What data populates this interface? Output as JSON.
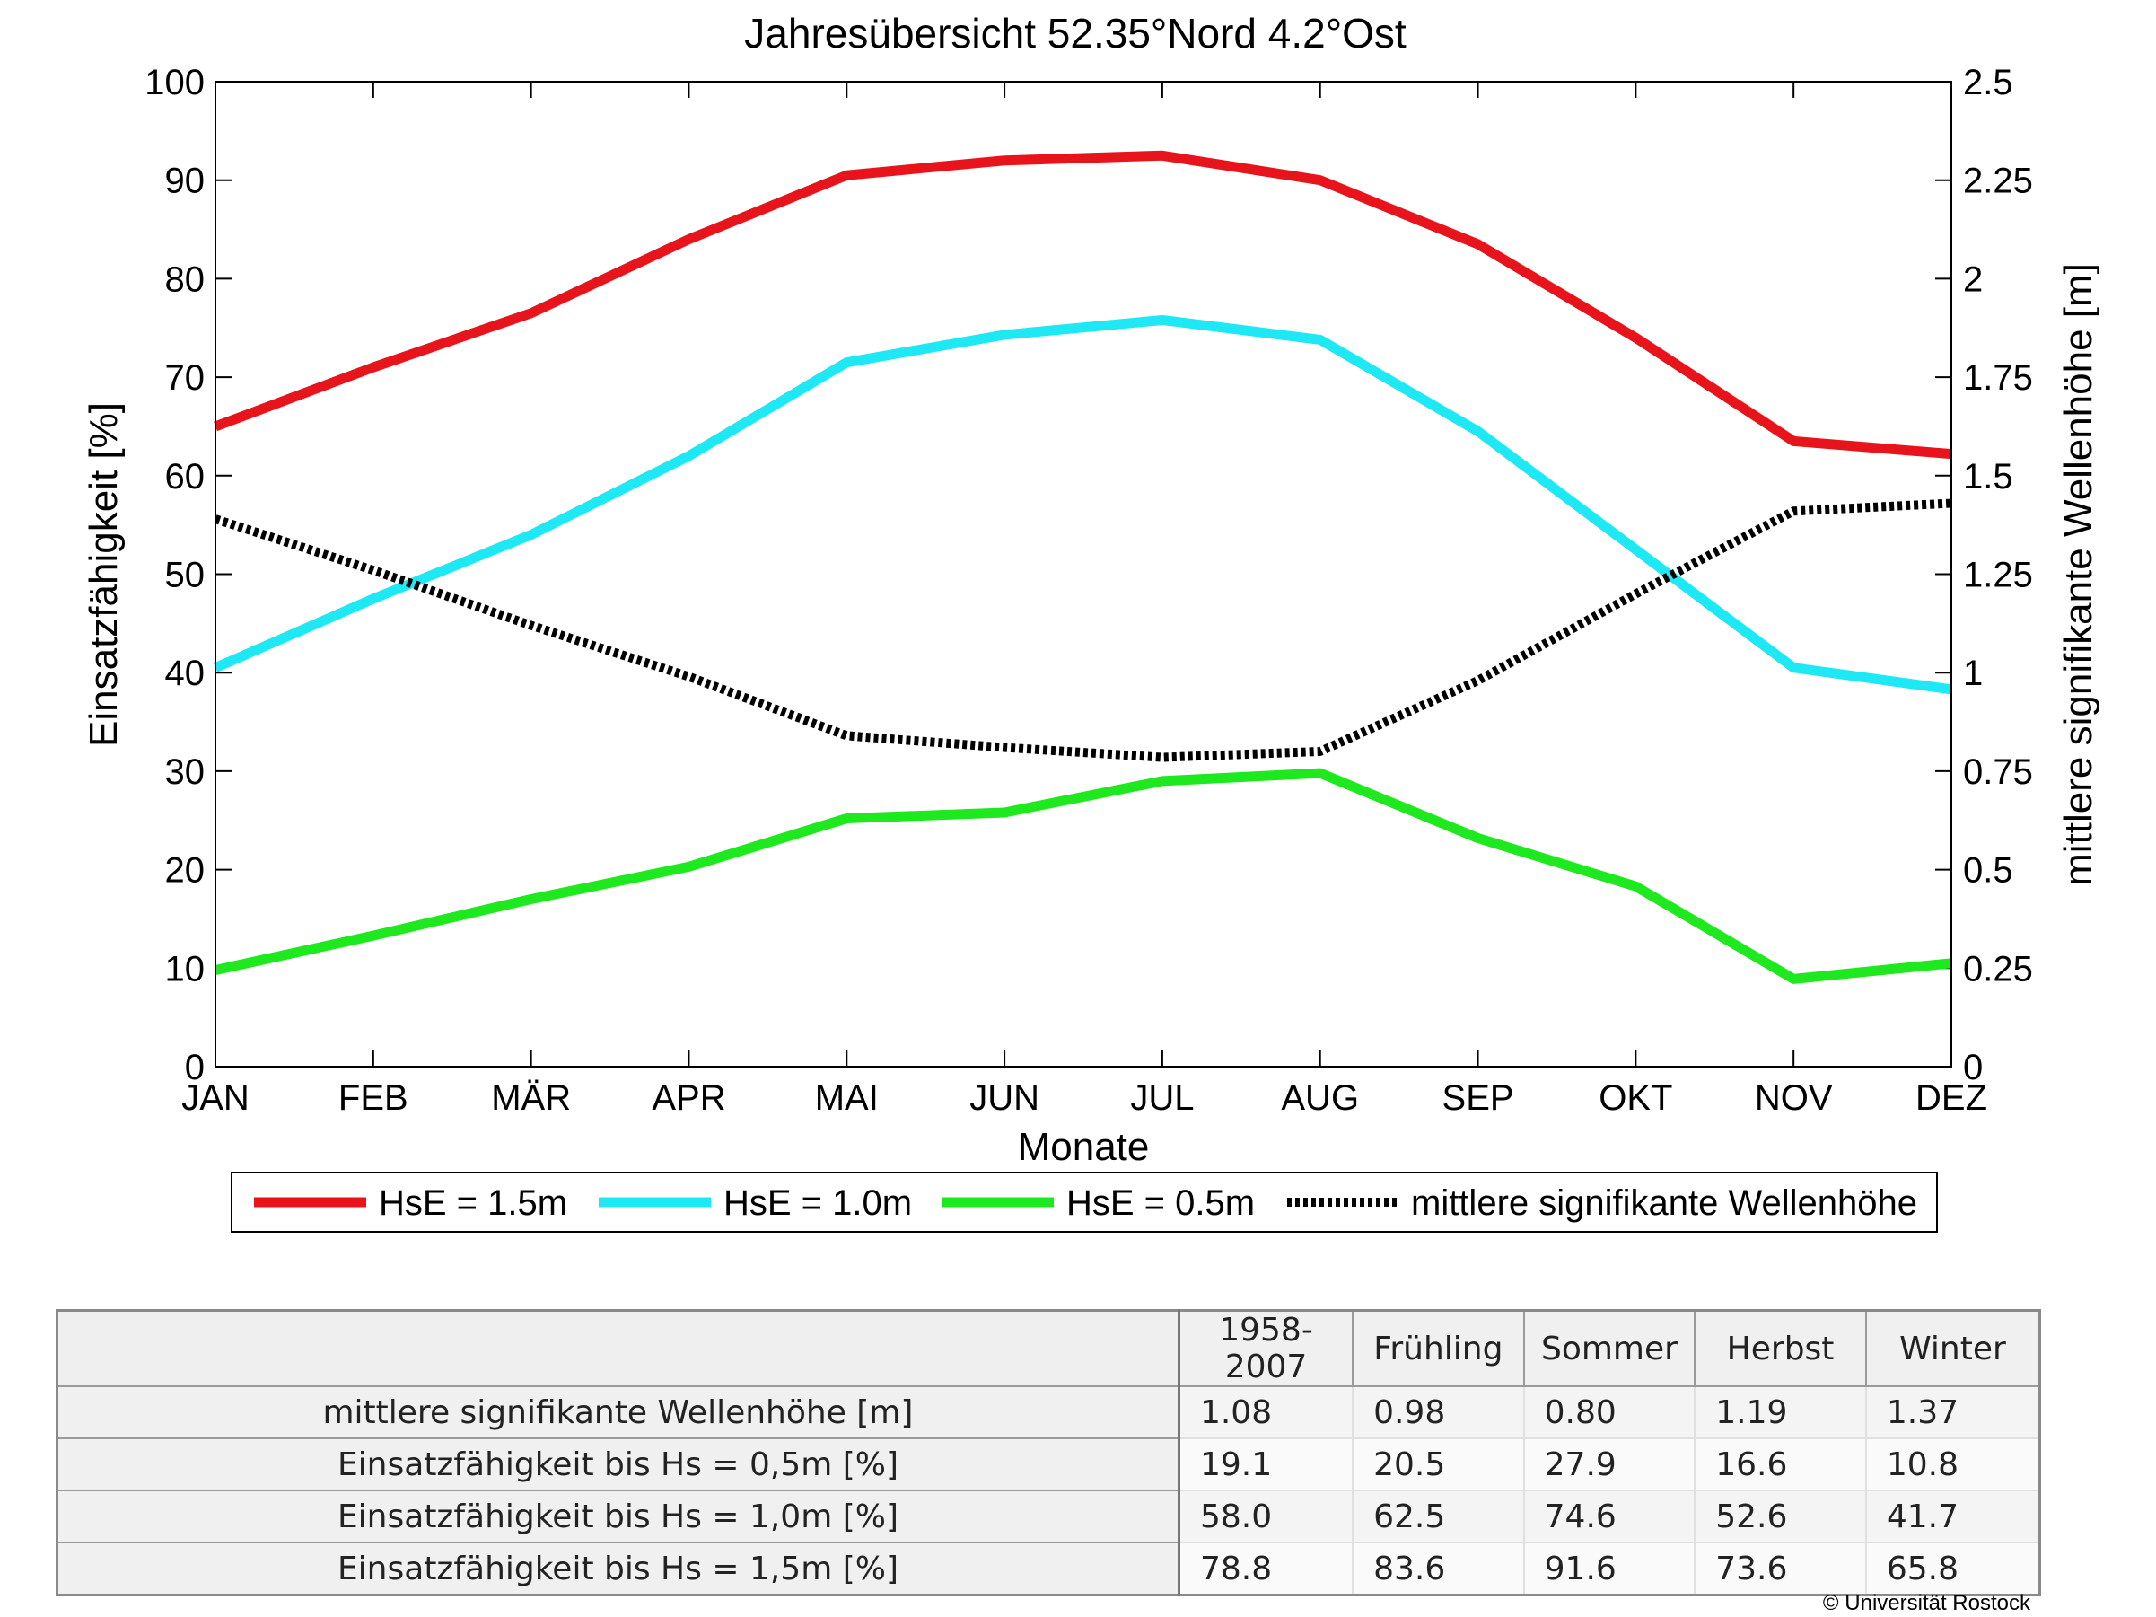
{
  "chart_data": {
    "type": "line",
    "title": "Jahresübersicht  52.35°Nord  4.2°Ost",
    "xlabel": "Monate",
    "ylabel_left": "Einsatzfähigkeit [%]",
    "ylabel_right": "mittlere signifikante Wellenhöhe [m]",
    "categories": [
      "JAN",
      "FEB",
      "MÄR",
      "APR",
      "MAI",
      "JUN",
      "JUL",
      "AUG",
      "SEP",
      "OKT",
      "NOV",
      "DEZ"
    ],
    "ylim_left": [
      0,
      100
    ],
    "yticks_left": [
      "0",
      "10",
      "20",
      "30",
      "40",
      "50",
      "60",
      "70",
      "80",
      "90",
      "100"
    ],
    "ylim_right": [
      0,
      2.5
    ],
    "yticks_right": [
      "0",
      "0.25",
      "0.5",
      "0.75",
      "1",
      "1.25",
      "1.5",
      "1.75",
      "2",
      "2.25",
      "2.5"
    ],
    "grid": false,
    "legend_position": "bottom",
    "series": [
      {
        "name": "HsE = 1.5m",
        "axis": "left",
        "color": "#e8141c",
        "dash": "solid",
        "values": [
          65,
          71,
          76.5,
          84,
          90.5,
          92,
          92.5,
          90,
          83.5,
          74,
          63.5,
          62.2
        ]
      },
      {
        "name": "HsE = 1.0m",
        "axis": "left",
        "color": "#1ee8f4",
        "dash": "solid",
        "values": [
          40.5,
          47.5,
          54,
          62,
          71.5,
          74.3,
          75.8,
          73.8,
          64.5,
          52.5,
          40.5,
          38.3
        ]
      },
      {
        "name": "HsE = 0.5m",
        "axis": "left",
        "color": "#1ee81e",
        "dash": "solid",
        "values": [
          9.8,
          13.3,
          17,
          20.3,
          25.2,
          25.8,
          29,
          29.8,
          23.2,
          18.3,
          8.9,
          10.5
        ]
      },
      {
        "name": "mittlere signifikante Wellenhöhe",
        "axis": "right",
        "color": "#000000",
        "dash": "dotted",
        "values": [
          1.39,
          1.26,
          1.12,
          0.99,
          0.84,
          0.81,
          0.785,
          0.8,
          0.98,
          1.2,
          1.41,
          1.43
        ]
      }
    ]
  },
  "table": {
    "columns": [
      "1958-2007",
      "Frühling",
      "Sommer",
      "Herbst",
      "Winter"
    ],
    "rows": [
      {
        "label": "mittlere signifikante Wellenhöhe [m]",
        "values": [
          "1.08",
          "0.98",
          "0.80",
          "1.19",
          "1.37"
        ]
      },
      {
        "label": "Einsatzfähigkeit bis Hs = 0,5m [%]",
        "values": [
          "19.1",
          "20.5",
          "27.9",
          "16.6",
          "10.8"
        ]
      },
      {
        "label": "Einsatzfähigkeit bis Hs = 1,0m [%]",
        "values": [
          "58.0",
          "62.5",
          "74.6",
          "52.6",
          "41.7"
        ]
      },
      {
        "label": "Einsatzfähigkeit bis Hs = 1,5m [%]",
        "values": [
          "78.8",
          "83.6",
          "91.6",
          "73.6",
          "65.8"
        ]
      }
    ]
  },
  "copyright": "© Universität Rostock"
}
